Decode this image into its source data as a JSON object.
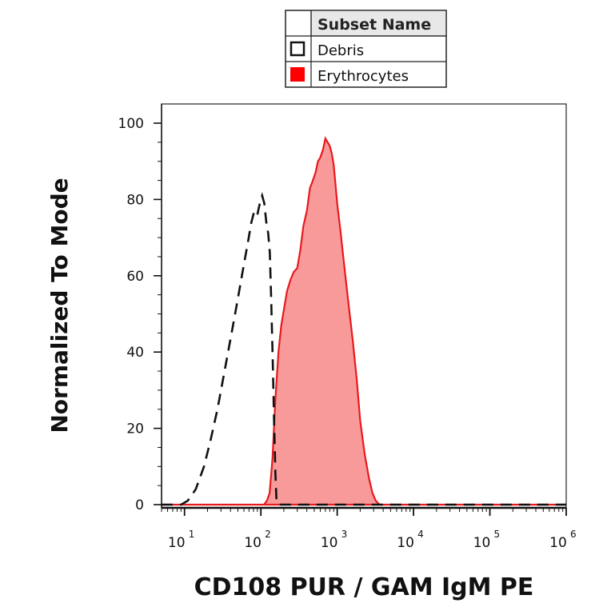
{
  "legend": {
    "header": "Subset Name",
    "entries": [
      {
        "label": "Debris",
        "style": "dashed-outline"
      },
      {
        "label": "Erythrocytes",
        "style": "filled"
      }
    ]
  },
  "colors": {
    "erythrocytes_fill": "#f89a9a",
    "erythrocytes_line": "#e8191d",
    "legend_swatch": "#ff0000",
    "debris_line": "#111111"
  },
  "chart_data": {
    "type": "area",
    "xlabel": "CD108 PUR / GAM IgM PE",
    "ylabel": "Normalized To Mode",
    "x_scale": "log",
    "xlim": [
      5,
      1000000
    ],
    "ylim": [
      0,
      105
    ],
    "x_tick_labels": [
      {
        "value": 10,
        "base": "10",
        "exp": "1"
      },
      {
        "value": 100,
        "base": "10",
        "exp": "2"
      },
      {
        "value": 1000,
        "base": "10",
        "exp": "3"
      },
      {
        "value": 10000,
        "base": "10",
        "exp": "4"
      },
      {
        "value": 100000,
        "base": "10",
        "exp": "5"
      },
      {
        "value": 1000000,
        "base": "10",
        "exp": "6"
      }
    ],
    "y_ticks": [
      0,
      20,
      40,
      60,
      80,
      100
    ],
    "grid": false,
    "legend_position": "top-center",
    "series": [
      {
        "name": "Debris",
        "style": "dashed",
        "x": [
          5,
          9,
          11,
          14,
          18,
          22,
          27,
          32,
          38,
          45,
          52,
          60,
          68,
          75,
          82,
          90,
          97,
          104,
          111,
          118,
          125,
          131,
          137,
          143,
          149,
          155,
          160,
          170,
          200,
          1000,
          1000000
        ],
        "y": [
          0,
          0,
          1,
          4,
          10,
          17,
          25,
          33,
          41,
          49,
          56,
          63,
          69,
          74,
          77,
          76,
          79,
          81,
          79,
          74,
          71,
          66,
          53,
          38,
          22,
          8,
          1,
          0,
          0,
          0,
          0
        ]
      },
      {
        "name": "Erythrocytes",
        "style": "filled",
        "x": [
          5,
          90,
          110,
          120,
          130,
          142,
          155,
          170,
          185,
          200,
          220,
          245,
          270,
          300,
          330,
          360,
          400,
          440,
          480,
          520,
          560,
          600,
          650,
          700,
          750,
          800,
          850,
          900,
          950,
          1000,
          1100,
          1200,
          1400,
          1600,
          1800,
          2000,
          2300,
          2600,
          2900,
          3200,
          3600,
          5000,
          1000000
        ],
        "y": [
          0,
          0,
          0,
          1,
          3,
          12,
          28,
          40,
          47,
          51,
          56,
          59,
          61,
          62,
          67,
          73,
          77,
          83,
          85,
          87,
          90,
          91,
          93,
          96,
          95,
          94,
          92,
          89,
          84,
          79,
          72,
          65,
          53,
          43,
          33,
          22,
          13,
          7,
          3,
          1,
          0,
          0,
          0
        ]
      }
    ]
  }
}
